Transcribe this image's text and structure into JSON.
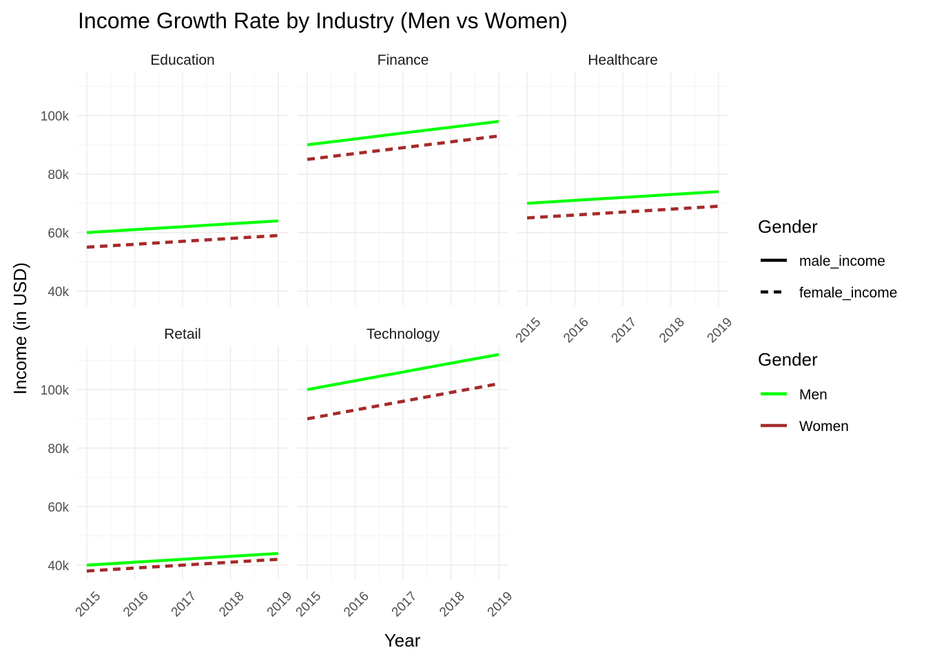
{
  "chart_data": {
    "type": "line",
    "title": "Income Growth Rate by Industry (Men vs Women)",
    "xlabel": "Year",
    "ylabel": "Income (in USD)",
    "x": [
      2015,
      2016,
      2017,
      2018,
      2019
    ],
    "x_tick_labels": [
      "2015",
      "2016",
      "2017",
      "2018",
      "2019"
    ],
    "y_ticks": [
      40000,
      60000,
      80000,
      100000
    ],
    "y_tick_labels": [
      "40k",
      "60k",
      "80k",
      "100k"
    ],
    "ylim": [
      35000,
      115000
    ],
    "grid": true,
    "facets": [
      {
        "name": "Education",
        "series": [
          {
            "gender": "Men",
            "linetype": "male_income",
            "values": [
              60000,
              61000,
              62000,
              63000,
              64000
            ]
          },
          {
            "gender": "Women",
            "linetype": "female_income",
            "values": [
              55000,
              56000,
              57000,
              58000,
              59000
            ]
          }
        ]
      },
      {
        "name": "Finance",
        "series": [
          {
            "gender": "Men",
            "linetype": "male_income",
            "values": [
              90000,
              92000,
              94000,
              96000,
              98000
            ]
          },
          {
            "gender": "Women",
            "linetype": "female_income",
            "values": [
              85000,
              87000,
              89000,
              91000,
              93000
            ]
          }
        ]
      },
      {
        "name": "Healthcare",
        "series": [
          {
            "gender": "Men",
            "linetype": "male_income",
            "values": [
              70000,
              71000,
              72000,
              73000,
              74000
            ]
          },
          {
            "gender": "Women",
            "linetype": "female_income",
            "values": [
              65000,
              66000,
              67000,
              68000,
              69000
            ]
          }
        ]
      },
      {
        "name": "Retail",
        "series": [
          {
            "gender": "Men",
            "linetype": "male_income",
            "values": [
              40000,
              41000,
              42000,
              43000,
              44000
            ]
          },
          {
            "gender": "Women",
            "linetype": "female_income",
            "values": [
              38000,
              39000,
              40000,
              41000,
              42000
            ]
          }
        ]
      },
      {
        "name": "Technology",
        "series": [
          {
            "gender": "Men",
            "linetype": "male_income",
            "values": [
              100000,
              103000,
              106000,
              109000,
              112000
            ]
          },
          {
            "gender": "Women",
            "linetype": "female_income",
            "values": [
              90000,
              93000,
              96000,
              99000,
              102000
            ]
          }
        ]
      }
    ],
    "legends": [
      {
        "title": "Gender",
        "kind": "linetype",
        "entries": [
          {
            "label": "male_income",
            "dash": "solid"
          },
          {
            "label": "female_income",
            "dash": "dashed"
          }
        ]
      },
      {
        "title": "Gender",
        "kind": "color",
        "entries": [
          {
            "label": "Men",
            "color": "#00ff00"
          },
          {
            "label": "Women",
            "color": "#a52a2a"
          }
        ]
      }
    ],
    "colors": {
      "Men": "#00ff00",
      "Women": "#a52a2a"
    },
    "legend_position": "right"
  }
}
